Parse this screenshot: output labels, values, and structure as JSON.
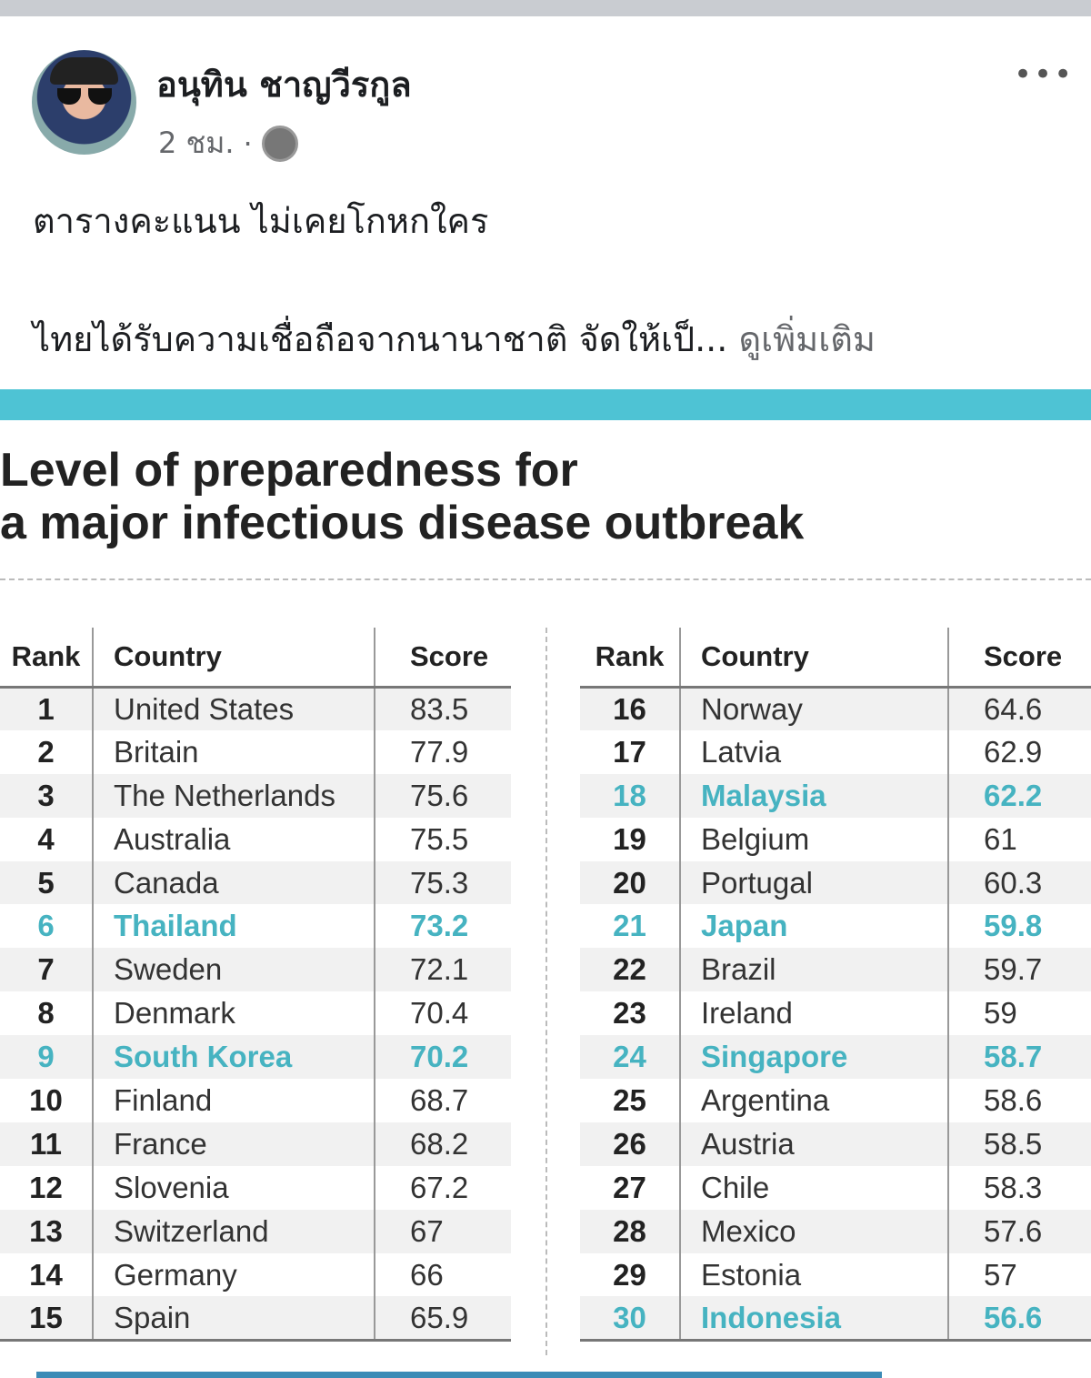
{
  "post": {
    "author": "อนุทิน ชาญวีรกูล",
    "time": "2 ชม.",
    "separator": "·",
    "privacy_icon": "globe-icon",
    "more_label": "•••",
    "line1": "ตารางคะแนน ไม่เคยโกหกใคร",
    "line2": "ไทยได้รับความเชื่อถือจากนานาชาติ จัดให้เป็...",
    "see_more": "ดูเพิ่มเติม"
  },
  "infographic": {
    "title_line1": "Level of preparedness for",
    "title_line2": "a major infectious disease outbreak",
    "accent": "#4ec3d4",
    "highlight": "#46b3c1",
    "headers": {
      "rank": "Rank",
      "country": "Country",
      "score": "Score"
    },
    "left": [
      {
        "rank": "1",
        "country": "United States",
        "score": "83.5"
      },
      {
        "rank": "2",
        "country": "Britain",
        "score": "77.9"
      },
      {
        "rank": "3",
        "country": "The Netherlands",
        "score": "75.6"
      },
      {
        "rank": "4",
        "country": "Australia",
        "score": "75.5"
      },
      {
        "rank": "5",
        "country": "Canada",
        "score": "75.3"
      },
      {
        "rank": "6",
        "country": "Thailand",
        "score": "73.2",
        "highlight": true
      },
      {
        "rank": "7",
        "country": "Sweden",
        "score": "72.1"
      },
      {
        "rank": "8",
        "country": "Denmark",
        "score": "70.4"
      },
      {
        "rank": "9",
        "country": "South Korea",
        "score": "70.2",
        "highlight": true
      },
      {
        "rank": "10",
        "country": "Finland",
        "score": "68.7"
      },
      {
        "rank": "11",
        "country": "France",
        "score": "68.2"
      },
      {
        "rank": "12",
        "country": "Slovenia",
        "score": "67.2"
      },
      {
        "rank": "13",
        "country": "Switzerland",
        "score": "67"
      },
      {
        "rank": "14",
        "country": "Germany",
        "score": "66"
      },
      {
        "rank": "15",
        "country": "Spain",
        "score": "65.9"
      }
    ],
    "right": [
      {
        "rank": "16",
        "country": "Norway",
        "score": "64.6"
      },
      {
        "rank": "17",
        "country": "Latvia",
        "score": "62.9"
      },
      {
        "rank": "18",
        "country": "Malaysia",
        "score": "62.2",
        "highlight": true
      },
      {
        "rank": "19",
        "country": "Belgium",
        "score": "61"
      },
      {
        "rank": "20",
        "country": "Portugal",
        "score": "60.3"
      },
      {
        "rank": "21",
        "country": "Japan",
        "score": "59.8",
        "highlight": true
      },
      {
        "rank": "22",
        "country": "Brazil",
        "score": "59.7"
      },
      {
        "rank": "23",
        "country": "Ireland",
        "score": "59"
      },
      {
        "rank": "24",
        "country": "Singapore",
        "score": "58.7",
        "highlight": true
      },
      {
        "rank": "25",
        "country": "Argentina",
        "score": "58.6"
      },
      {
        "rank": "26",
        "country": "Austria",
        "score": "58.5"
      },
      {
        "rank": "27",
        "country": "Chile",
        "score": "58.3"
      },
      {
        "rank": "28",
        "country": "Mexico",
        "score": "57.6"
      },
      {
        "rank": "29",
        "country": "Estonia",
        "score": "57"
      },
      {
        "rank": "30",
        "country": "Indonesia",
        "score": "56.6",
        "highlight": true
      }
    ]
  }
}
